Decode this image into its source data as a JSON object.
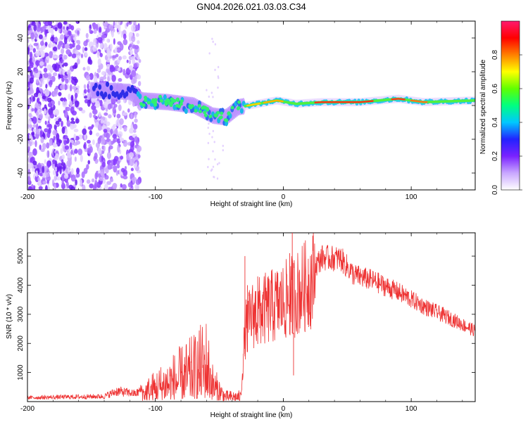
{
  "title": "GN04.2026.021.03.03.C34",
  "chart_data": [
    {
      "type": "heatmap",
      "xlabel": "Height of straight line (km)",
      "ylabel": "Frequency (Hz)",
      "xlim": [
        -200,
        150
      ],
      "ylim": [
        -50,
        50
      ],
      "xticks": [
        -200,
        -100,
        0,
        100
      ],
      "yticks": [
        40,
        20,
        0,
        -20,
        -40
      ],
      "colorbar": {
        "label": "Normalized spectral amplitude",
        "range": [
          0,
          1
        ],
        "ticks": [
          "0.0",
          "0.2",
          "0.4",
          "0.6",
          "0.8"
        ],
        "colors": [
          "#ffffff",
          "#c9a7ff",
          "#7a22ff",
          "#2222ff",
          "#00c8ff",
          "#00ff80",
          "#60ff00",
          "#ffff00",
          "#ff8000",
          "#ff0000",
          "#ff1a6e"
        ]
      },
      "ridge": [
        {
          "x": -145,
          "y": 9
        },
        {
          "x": -120,
          "y": 8
        },
        {
          "x": -110,
          "y": 3
        },
        {
          "x": -90,
          "y": 2
        },
        {
          "x": -70,
          "y": 0
        },
        {
          "x": -55,
          "y": -6
        },
        {
          "x": -45,
          "y": -7
        },
        {
          "x": -35,
          "y": -1
        },
        {
          "x": -20,
          "y": 1
        },
        {
          "x": -5,
          "y": 3
        },
        {
          "x": 10,
          "y": 1
        },
        {
          "x": 30,
          "y": 2
        },
        {
          "x": 60,
          "y": 2
        },
        {
          "x": 90,
          "y": 4
        },
        {
          "x": 110,
          "y": 2
        },
        {
          "x": 150,
          "y": 3
        }
      ]
    },
    {
      "type": "line",
      "xlabel": "Height of straight line (km)",
      "ylabel": "SNR (10 * v/v)",
      "xlim": [
        -200,
        150
      ],
      "ylim": [
        0,
        5800
      ],
      "xticks": [
        -200,
        -100,
        0,
        100
      ],
      "yticks": [
        1000,
        2000,
        3000,
        4000,
        5000
      ],
      "color": "#ee3333",
      "envelope": [
        {
          "x": -200,
          "y": 150
        },
        {
          "x": -140,
          "y": 200
        },
        {
          "x": -130,
          "y": 400
        },
        {
          "x": -115,
          "y": 300
        },
        {
          "x": -105,
          "y": 700
        },
        {
          "x": -90,
          "y": 1200
        },
        {
          "x": -70,
          "y": 1800
        },
        {
          "x": -60,
          "y": 2300
        },
        {
          "x": -55,
          "y": 1000
        },
        {
          "x": -45,
          "y": 300
        },
        {
          "x": -33,
          "y": 300
        },
        {
          "x": -30,
          "y": 2600
        },
        {
          "x": -25,
          "y": 3200
        },
        {
          "x": -15,
          "y": 3400
        },
        {
          "x": 0,
          "y": 3700
        },
        {
          "x": 10,
          "y": 4000
        },
        {
          "x": 20,
          "y": 4400
        },
        {
          "x": 30,
          "y": 5000
        },
        {
          "x": 45,
          "y": 4950
        },
        {
          "x": 55,
          "y": 4400
        },
        {
          "x": 70,
          "y": 4200
        },
        {
          "x": 90,
          "y": 3800
        },
        {
          "x": 110,
          "y": 3300
        },
        {
          "x": 130,
          "y": 2900
        },
        {
          "x": 150,
          "y": 2450
        }
      ],
      "spikes": [
        {
          "x": -30,
          "y": 5000
        },
        {
          "x": -28,
          "y": 4000
        },
        {
          "x": -20,
          "y": 4300
        },
        {
          "x": 5,
          "y": 5100
        },
        {
          "x": 7,
          "y": 5800
        },
        {
          "x": 8,
          "y": 900
        }
      ]
    }
  ]
}
